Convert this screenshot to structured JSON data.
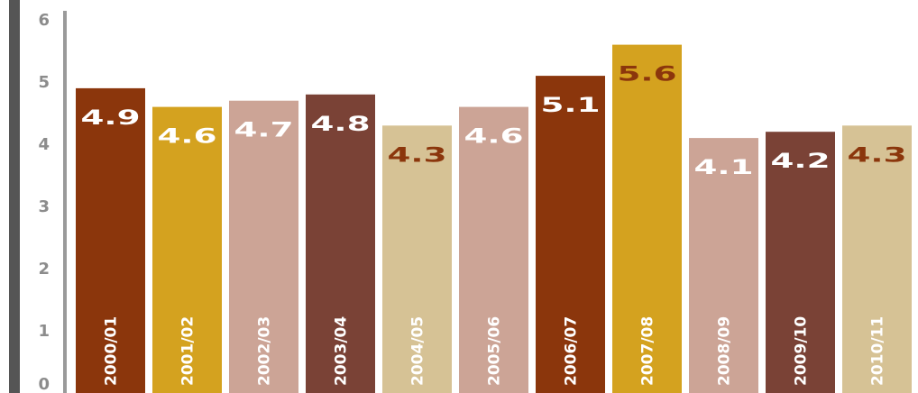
{
  "chart_data": {
    "type": "bar",
    "title": "",
    "xlabel": "",
    "ylabel": "",
    "ylim": [
      0,
      6
    ],
    "yticks": [
      "0",
      "1",
      "2",
      "3",
      "4",
      "5",
      "6"
    ],
    "grid": false,
    "categories": [
      "2000/01",
      "2001/02",
      "2002/03",
      "2003/04",
      "2004/05",
      "2005/06",
      "2006/07",
      "2007/08",
      "2008/09",
      "2009/10",
      "2010/11"
    ],
    "values": [
      4.9,
      4.6,
      4.7,
      4.8,
      4.3,
      4.6,
      5.1,
      5.6,
      4.1,
      4.2,
      4.3
    ],
    "value_labels": [
      "4.9",
      "4.6",
      "4.7",
      "4.8",
      "4.3",
      "4.6",
      "5.1",
      "5.6",
      "4.1",
      "4.2",
      "4.3"
    ],
    "bar_colors": [
      "#8b360c",
      "#d4a21f",
      "#cca496",
      "#7a4236",
      "#d6c295",
      "#cca496",
      "#8b360c",
      "#d4a21f",
      "#cca496",
      "#7a4236",
      "#d6c295"
    ],
    "value_label_colors": [
      "#ffffff",
      "#ffffff",
      "#ffffff",
      "#ffffff",
      "#8b360c",
      "#ffffff",
      "#ffffff",
      "#8b360c",
      "#ffffff",
      "#ffffff",
      "#8b360c"
    ],
    "axis_color": "#9a9a9a",
    "left_rule_color": "#555555"
  }
}
